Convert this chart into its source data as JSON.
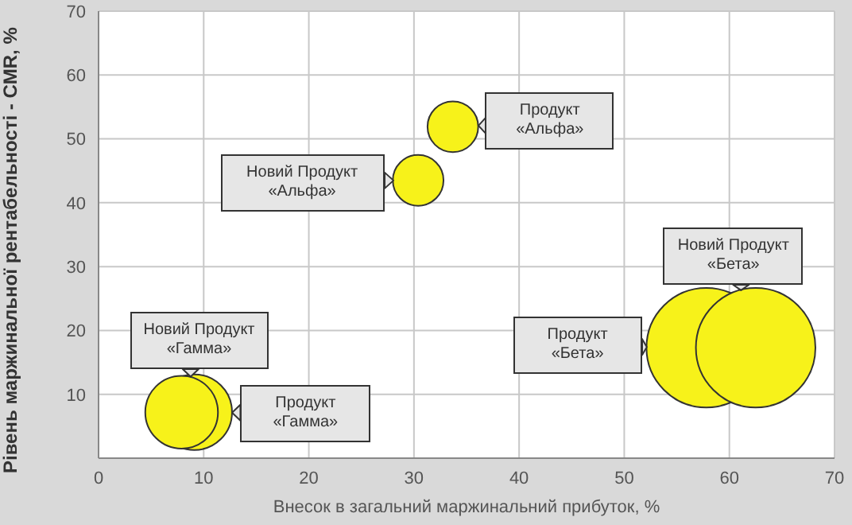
{
  "chart_data": {
    "type": "bubble",
    "xlabel": "Внесок в загальний маржинальний прибуток, %",
    "ylabel": "Рівень маржинальної рентабельності - CMR, %",
    "x": [
      33.7,
      30.4,
      57.8,
      62.5,
      9.1,
      7.9
    ],
    "values": [
      51.9,
      43.5,
      17.3,
      17.3,
      7.2,
      7.2
    ],
    "sizes": [
      0.18,
      0.18,
      1,
      1,
      0.4,
      0.37
    ],
    "color": "#f7f21a",
    "xlim": [
      0,
      70
    ],
    "xticks": [
      0,
      10,
      20,
      30,
      40,
      50,
      60,
      70
    ],
    "ylim": [
      0,
      70
    ],
    "yticks": [
      10,
      20,
      30,
      40,
      50,
      60,
      70
    ],
    "grid": true,
    "annotations": [
      "Продукт\n«Альфа»",
      "Новий Продукт\n«Альфа»",
      "Продукт\n«Бета»",
      "Новий Продукт\n«Бета»",
      "Продукт\n«Гамма»",
      "Новий Продукт\n«Гамма»"
    ]
  }
}
